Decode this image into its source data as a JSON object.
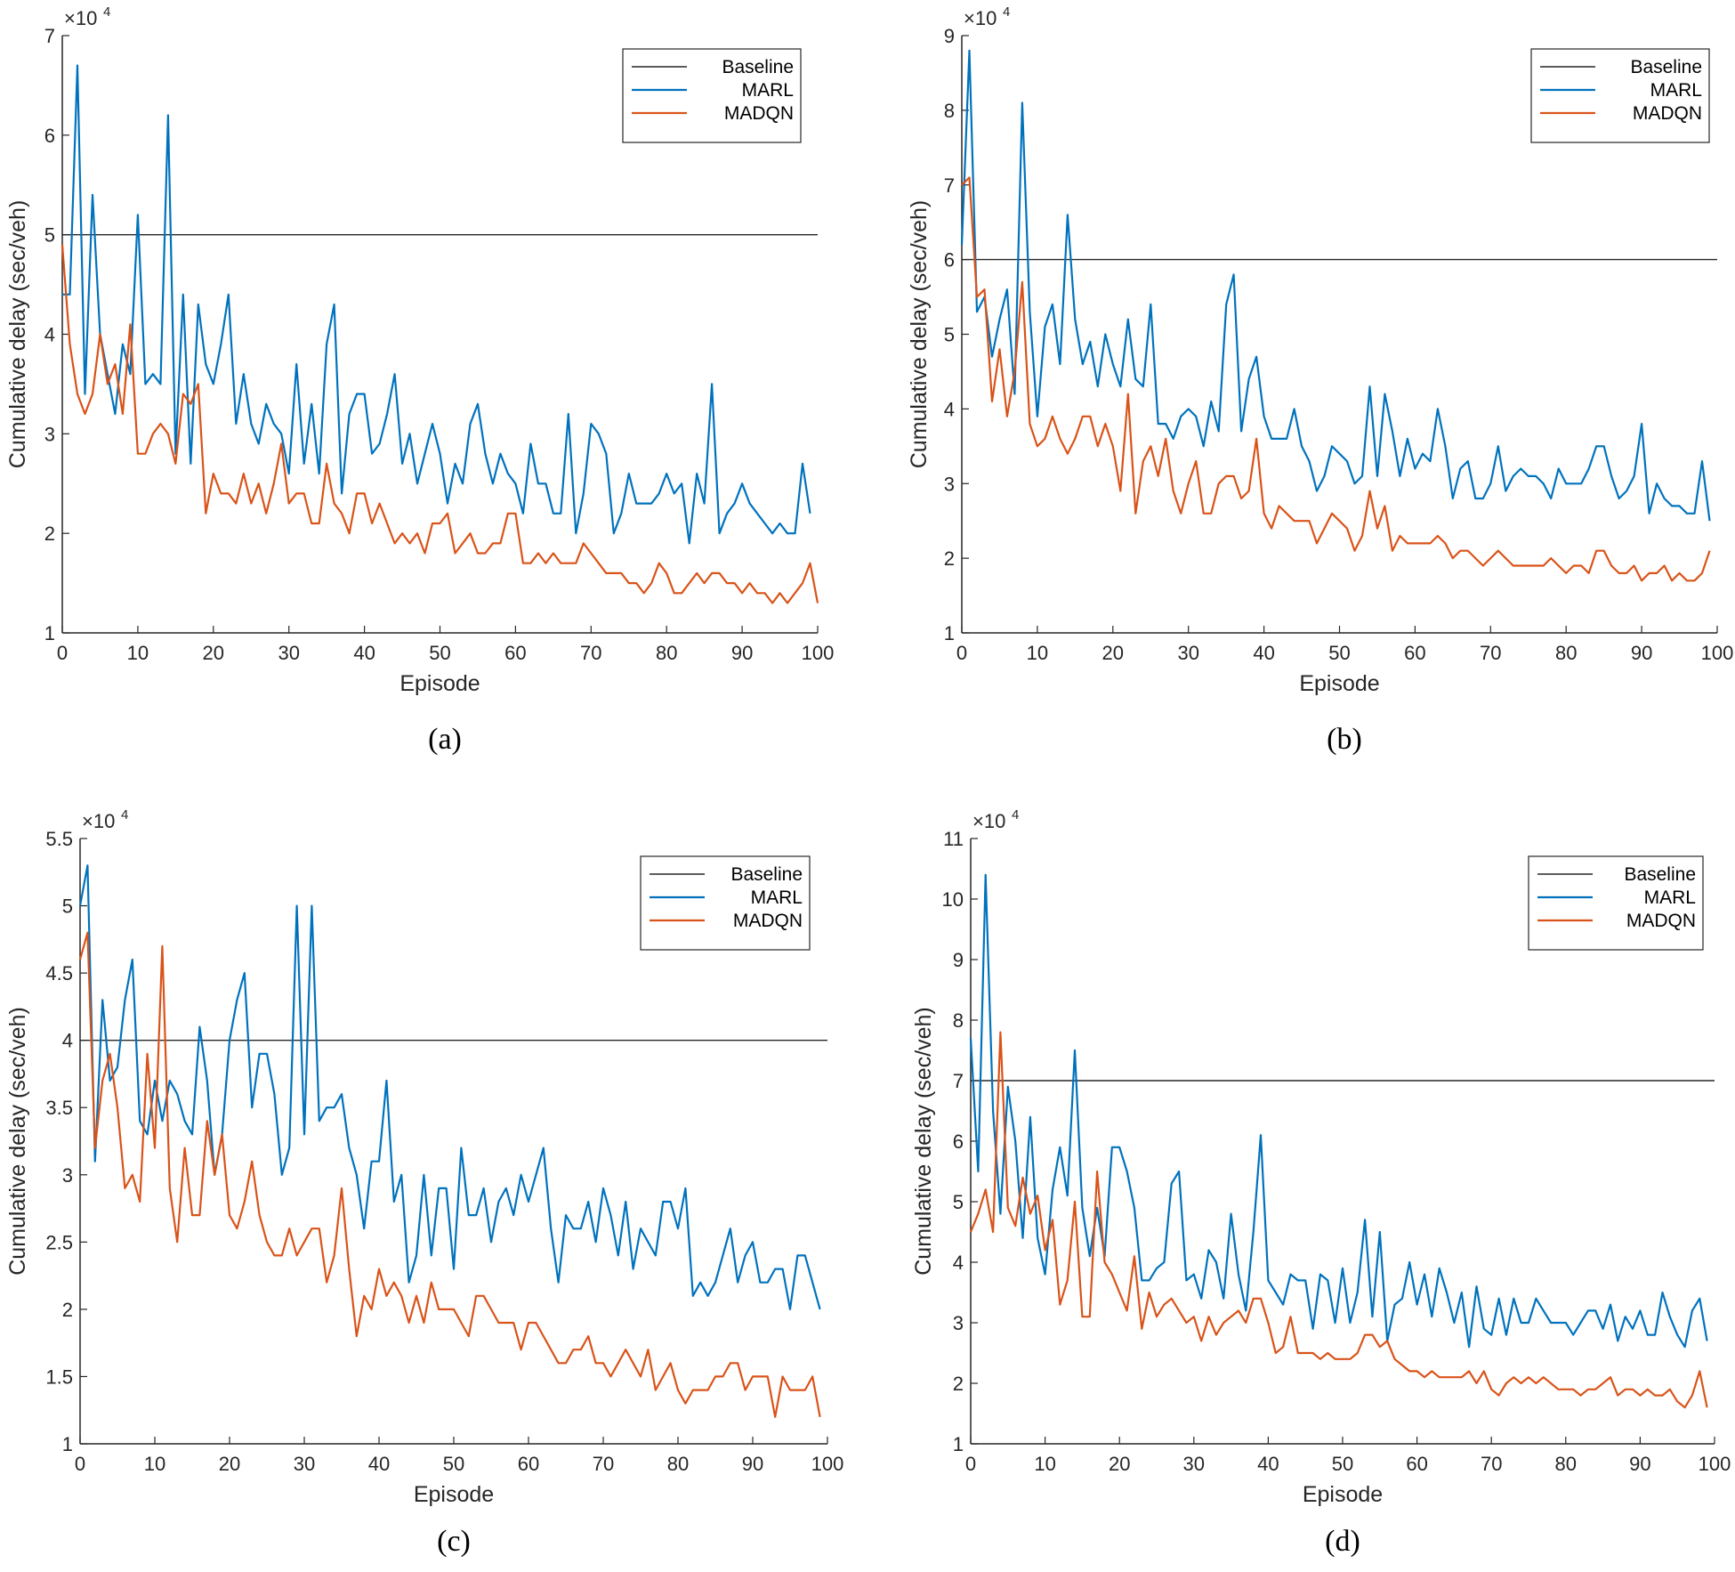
{
  "colors": {
    "baseline": "#262626",
    "marl": "#0072BD",
    "madqn": "#D95319",
    "axis": "#262626"
  },
  "chart_data": [
    {
      "type": "line",
      "panel_label": "(a)",
      "xlabel": "Episode",
      "ylabel": "Cumulative delay (sec/veh)",
      "exponent_label": "×10",
      "exponent": "4",
      "xlim": [
        0,
        100
      ],
      "ylim": [
        1,
        7
      ],
      "xticks": [
        "0",
        "10",
        "20",
        "30",
        "40",
        "50",
        "60",
        "70",
        "80",
        "90",
        "100"
      ],
      "yticks": [
        "1",
        "2",
        "3",
        "4",
        "5",
        "6",
        "7"
      ],
      "legend": [
        "Baseline",
        "MARL",
        "MADQN"
      ],
      "legend_position": "top-right",
      "series": [
        {
          "name": "Baseline",
          "x": [
            0,
            100
          ],
          "values": [
            5.0,
            5.0
          ]
        },
        {
          "name": "MARL",
          "values": [
            4.4,
            4.4,
            6.7,
            3.4,
            5.4,
            4.0,
            3.6,
            3.2,
            3.9,
            3.6,
            5.2,
            3.5,
            3.6,
            3.5,
            6.2,
            2.8,
            4.4,
            2.7,
            4.3,
            3.7,
            3.5,
            3.9,
            4.4,
            3.1,
            3.6,
            3.1,
            2.9,
            3.3,
            3.1,
            3.0,
            2.6,
            3.7,
            2.7,
            3.3,
            2.6,
            3.9,
            4.3,
            2.4,
            3.2,
            3.4,
            3.4,
            2.8,
            2.9,
            3.2,
            3.6,
            2.7,
            3.0,
            2.5,
            2.8,
            3.1,
            2.8,
            2.3,
            2.7,
            2.5,
            3.1,
            3.3,
            2.8,
            2.5,
            2.8,
            2.6,
            2.5,
            2.2,
            2.9,
            2.5,
            2.5,
            2.2,
            2.2,
            3.2,
            2.0,
            2.4,
            3.1,
            3.0,
            2.8,
            2.0,
            2.2,
            2.6,
            2.3,
            2.3,
            2.3,
            2.4,
            2.6,
            2.4,
            2.5,
            1.9,
            2.6,
            2.3,
            3.5,
            2.0,
            2.2,
            2.3,
            2.5,
            2.3,
            2.2,
            2.1,
            2.0,
            2.1,
            2.0,
            2.0,
            2.7,
            2.2
          ]
        },
        {
          "name": "MADQN",
          "values": [
            4.9,
            3.9,
            3.4,
            3.2,
            3.4,
            4.0,
            3.5,
            3.7,
            3.2,
            4.1,
            2.8,
            2.8,
            3.0,
            3.1,
            3.0,
            2.7,
            3.4,
            3.3,
            3.5,
            2.2,
            2.6,
            2.4,
            2.4,
            2.3,
            2.6,
            2.3,
            2.5,
            2.2,
            2.5,
            2.9,
            2.3,
            2.4,
            2.4,
            2.1,
            2.1,
            2.7,
            2.3,
            2.2,
            2.0,
            2.4,
            2.4,
            2.1,
            2.3,
            2.1,
            1.9,
            2.0,
            1.9,
            2.0,
            1.8,
            2.1,
            2.1,
            2.2,
            1.8,
            1.9,
            2.0,
            1.8,
            1.8,
            1.9,
            1.9,
            2.2,
            2.2,
            1.7,
            1.7,
            1.8,
            1.7,
            1.8,
            1.7,
            1.7,
            1.7,
            1.9,
            1.8,
            1.7,
            1.6,
            1.6,
            1.6,
            1.5,
            1.5,
            1.4,
            1.5,
            1.7,
            1.6,
            1.4,
            1.4,
            1.5,
            1.6,
            1.5,
            1.6,
            1.6,
            1.5,
            1.5,
            1.4,
            1.5,
            1.4,
            1.4,
            1.3,
            1.4,
            1.3,
            1.4,
            1.5,
            1.7,
            1.3
          ]
        }
      ]
    },
    {
      "type": "line",
      "panel_label": "(b)",
      "xlabel": "Episode",
      "ylabel": "Cumulative delay (sec/veh)",
      "exponent_label": "×10",
      "exponent": "4",
      "xlim": [
        0,
        100
      ],
      "ylim": [
        1,
        9
      ],
      "xticks": [
        "0",
        "10",
        "20",
        "30",
        "40",
        "50",
        "60",
        "70",
        "80",
        "90",
        "100"
      ],
      "yticks": [
        "1",
        "2",
        "3",
        "4",
        "5",
        "6",
        "7",
        "8",
        "9"
      ],
      "legend": [
        "Baseline",
        "MARL",
        "MADQN"
      ],
      "legend_position": "top-right",
      "series": [
        {
          "name": "Baseline",
          "x": [
            0,
            100
          ],
          "values": [
            6.0,
            6.0
          ]
        },
        {
          "name": "MARL",
          "values": [
            6.2,
            8.8,
            5.3,
            5.5,
            4.7,
            5.2,
            5.6,
            4.2,
            8.1,
            5.3,
            3.9,
            5.1,
            5.4,
            4.6,
            6.6,
            5.2,
            4.6,
            4.9,
            4.3,
            5.0,
            4.6,
            4.3,
            5.2,
            4.4,
            4.3,
            5.4,
            3.8,
            3.8,
            3.6,
            3.9,
            4.0,
            3.9,
            3.5,
            4.1,
            3.7,
            5.4,
            5.8,
            3.7,
            4.4,
            4.7,
            3.9,
            3.6,
            3.6,
            3.6,
            4.0,
            3.5,
            3.3,
            2.9,
            3.1,
            3.5,
            3.4,
            3.3,
            3.0,
            3.1,
            4.3,
            3.1,
            4.2,
            3.7,
            3.1,
            3.6,
            3.2,
            3.4,
            3.3,
            4.0,
            3.5,
            2.8,
            3.2,
            3.3,
            2.8,
            2.8,
            3.0,
            3.5,
            2.9,
            3.1,
            3.2,
            3.1,
            3.1,
            3.0,
            2.8,
            3.2,
            3.0,
            3.0,
            3.0,
            3.2,
            3.5,
            3.5,
            3.1,
            2.8,
            2.9,
            3.1,
            3.8,
            2.6,
            3.0,
            2.8,
            2.7,
            2.7,
            2.6,
            2.6,
            3.3,
            2.5
          ]
        },
        {
          "name": "MADQN",
          "values": [
            7.0,
            7.1,
            5.5,
            5.6,
            4.1,
            4.8,
            3.9,
            4.5,
            5.7,
            3.8,
            3.5,
            3.6,
            3.9,
            3.6,
            3.4,
            3.6,
            3.9,
            3.9,
            3.5,
            3.8,
            3.5,
            2.9,
            4.2,
            2.6,
            3.3,
            3.5,
            3.1,
            3.6,
            2.9,
            2.6,
            3.0,
            3.3,
            2.6,
            2.6,
            3.0,
            3.1,
            3.1,
            2.8,
            2.9,
            3.6,
            2.6,
            2.4,
            2.7,
            2.6,
            2.5,
            2.5,
            2.5,
            2.2,
            2.4,
            2.6,
            2.5,
            2.4,
            2.1,
            2.3,
            2.9,
            2.4,
            2.7,
            2.1,
            2.3,
            2.2,
            2.2,
            2.2,
            2.2,
            2.3,
            2.2,
            2.0,
            2.1,
            2.1,
            2.0,
            1.9,
            2.0,
            2.1,
            2.0,
            1.9,
            1.9,
            1.9,
            1.9,
            1.9,
            2.0,
            1.9,
            1.8,
            1.9,
            1.9,
            1.8,
            2.1,
            2.1,
            1.9,
            1.8,
            1.8,
            1.9,
            1.7,
            1.8,
            1.8,
            1.9,
            1.7,
            1.8,
            1.7,
            1.7,
            1.8,
            2.1
          ]
        }
      ]
    },
    {
      "type": "line",
      "panel_label": "(c)",
      "xlabel": "Episode",
      "ylabel": "Cumulative delay (sec/veh)",
      "exponent_label": "×10",
      "exponent": "4",
      "xlim": [
        0,
        100
      ],
      "ylim": [
        1,
        5.5
      ],
      "xticks": [
        "0",
        "10",
        "20",
        "30",
        "40",
        "50",
        "60",
        "70",
        "80",
        "90",
        "100"
      ],
      "yticks": [
        "1",
        "1.5",
        "2",
        "2.5",
        "3",
        "3.5",
        "4",
        "4.5",
        "5",
        "5.5"
      ],
      "legend": [
        "Baseline",
        "MARL",
        "MADQN"
      ],
      "legend_position": "top-right",
      "series": [
        {
          "name": "Baseline",
          "x": [
            0,
            100
          ],
          "values": [
            4.0,
            4.0
          ]
        },
        {
          "name": "MARL",
          "values": [
            5.0,
            5.3,
            3.1,
            4.3,
            3.7,
            3.8,
            4.3,
            4.6,
            3.4,
            3.3,
            3.7,
            3.4,
            3.7,
            3.6,
            3.4,
            3.3,
            4.1,
            3.7,
            3.0,
            3.3,
            4.0,
            4.3,
            4.5,
            3.5,
            3.9,
            3.9,
            3.6,
            3.0,
            3.2,
            5.0,
            3.3,
            5.0,
            3.4,
            3.5,
            3.5,
            3.6,
            3.2,
            3.0,
            2.6,
            3.1,
            3.1,
            3.7,
            2.8,
            3.0,
            2.2,
            2.4,
            3.0,
            2.4,
            2.9,
            2.9,
            2.3,
            3.2,
            2.7,
            2.7,
            2.9,
            2.5,
            2.8,
            2.9,
            2.7,
            3.0,
            2.8,
            3.0,
            3.2,
            2.6,
            2.2,
            2.7,
            2.6,
            2.6,
            2.8,
            2.5,
            2.9,
            2.7,
            2.4,
            2.8,
            2.3,
            2.6,
            2.5,
            2.4,
            2.8,
            2.8,
            2.6,
            2.9,
            2.1,
            2.2,
            2.1,
            2.2,
            2.4,
            2.6,
            2.2,
            2.4,
            2.5,
            2.2,
            2.2,
            2.3,
            2.3,
            2.0,
            2.4,
            2.4,
            2.2,
            2.0
          ]
        },
        {
          "name": "MADQN",
          "values": [
            4.6,
            4.8,
            3.2,
            3.7,
            3.9,
            3.5,
            2.9,
            3.0,
            2.8,
            3.9,
            3.2,
            4.7,
            2.9,
            2.5,
            3.2,
            2.7,
            2.7,
            3.4,
            3.0,
            3.3,
            2.7,
            2.6,
            2.8,
            3.1,
            2.7,
            2.5,
            2.4,
            2.4,
            2.6,
            2.4,
            2.5,
            2.6,
            2.6,
            2.2,
            2.4,
            2.9,
            2.3,
            1.8,
            2.1,
            2.0,
            2.3,
            2.1,
            2.2,
            2.1,
            1.9,
            2.1,
            1.9,
            2.2,
            2.0,
            2.0,
            2.0,
            1.9,
            1.8,
            2.1,
            2.1,
            2.0,
            1.9,
            1.9,
            1.9,
            1.7,
            1.9,
            1.9,
            1.8,
            1.7,
            1.6,
            1.6,
            1.7,
            1.7,
            1.8,
            1.6,
            1.6,
            1.5,
            1.6,
            1.7,
            1.6,
            1.5,
            1.7,
            1.4,
            1.5,
            1.6,
            1.4,
            1.3,
            1.4,
            1.4,
            1.4,
            1.5,
            1.5,
            1.6,
            1.6,
            1.4,
            1.5,
            1.5,
            1.5,
            1.2,
            1.5,
            1.4,
            1.4,
            1.4,
            1.5,
            1.2
          ]
        }
      ]
    },
    {
      "type": "line",
      "panel_label": "(d)",
      "xlabel": "Episode",
      "ylabel": "Cumulative delay (sec/veh)",
      "exponent_label": "×10",
      "exponent": "4",
      "xlim": [
        0,
        100
      ],
      "ylim": [
        1,
        11
      ],
      "xticks": [
        "0",
        "10",
        "20",
        "30",
        "40",
        "50",
        "60",
        "70",
        "80",
        "90",
        "100"
      ],
      "yticks": [
        "1",
        "2",
        "3",
        "4",
        "5",
        "6",
        "7",
        "8",
        "9",
        "10",
        "11"
      ],
      "legend": [
        "Baseline",
        "MARL",
        "MADQN"
      ],
      "legend_position": "top-right",
      "series": [
        {
          "name": "Baseline",
          "x": [
            0,
            100
          ],
          "values": [
            7.0,
            7.0
          ]
        },
        {
          "name": "MARL",
          "values": [
            7.7,
            5.5,
            10.4,
            6.5,
            4.8,
            6.9,
            6.0,
            4.4,
            6.4,
            4.4,
            3.8,
            5.2,
            5.9,
            5.1,
            7.5,
            4.9,
            4.1,
            4.9,
            4.1,
            5.9,
            5.9,
            5.5,
            4.9,
            3.7,
            3.7,
            3.9,
            4.0,
            5.3,
            5.5,
            3.7,
            3.8,
            3.4,
            4.2,
            4.0,
            3.4,
            4.8,
            3.8,
            3.2,
            4.5,
            6.1,
            3.7,
            3.5,
            3.3,
            3.8,
            3.7,
            3.7,
            2.9,
            3.8,
            3.7,
            3.0,
            3.9,
            3.0,
            3.5,
            4.7,
            3.1,
            4.5,
            2.7,
            3.3,
            3.4,
            4.0,
            3.3,
            3.8,
            3.1,
            3.9,
            3.5,
            3.0,
            3.5,
            2.6,
            3.6,
            2.9,
            2.8,
            3.4,
            2.8,
            3.4,
            3.0,
            3.0,
            3.4,
            3.2,
            3.0,
            3.0,
            3.0,
            2.8,
            3.0,
            3.2,
            3.2,
            2.9,
            3.3,
            2.7,
            3.1,
            2.9,
            3.2,
            2.8,
            2.8,
            3.5,
            3.1,
            2.8,
            2.6,
            3.2,
            3.4,
            2.7
          ]
        },
        {
          "name": "MADQN",
          "values": [
            4.5,
            4.8,
            5.2,
            4.5,
            7.8,
            4.9,
            4.6,
            5.4,
            4.8,
            5.1,
            4.2,
            4.7,
            3.3,
            3.7,
            5.0,
            3.1,
            3.1,
            5.5,
            4.0,
            3.8,
            3.5,
            3.2,
            4.1,
            2.9,
            3.5,
            3.1,
            3.3,
            3.4,
            3.2,
            3.0,
            3.1,
            2.7,
            3.1,
            2.8,
            3.0,
            3.1,
            3.2,
            3.0,
            3.4,
            3.4,
            3.0,
            2.5,
            2.6,
            3.1,
            2.5,
            2.5,
            2.5,
            2.4,
            2.5,
            2.4,
            2.4,
            2.4,
            2.5,
            2.8,
            2.8,
            2.6,
            2.7,
            2.4,
            2.3,
            2.2,
            2.2,
            2.1,
            2.2,
            2.1,
            2.1,
            2.1,
            2.1,
            2.2,
            2.0,
            2.2,
            1.9,
            1.8,
            2.0,
            2.1,
            2.0,
            2.1,
            2.0,
            2.1,
            2.0,
            1.9,
            1.9,
            1.9,
            1.8,
            1.9,
            1.9,
            2.0,
            2.1,
            1.8,
            1.9,
            1.9,
            1.8,
            1.9,
            1.8,
            1.8,
            1.9,
            1.7,
            1.6,
            1.8,
            2.2,
            1.6
          ]
        }
      ]
    }
  ]
}
